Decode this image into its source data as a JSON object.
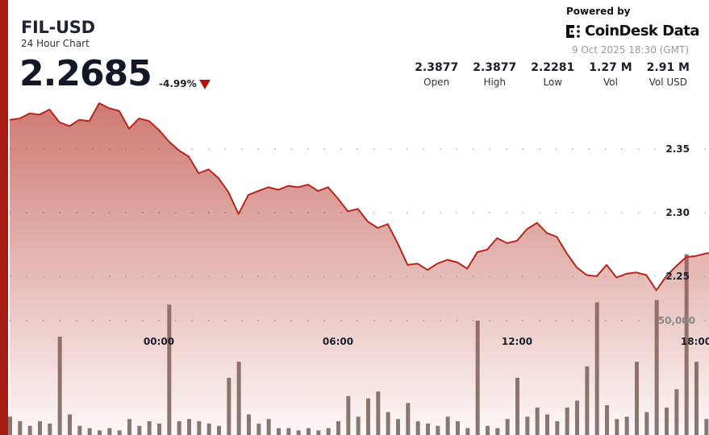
{
  "header": {
    "symbol": "FIL-USD",
    "subtitle": "24 Hour Chart",
    "price": "2.2685",
    "change": "-4.99%",
    "change_direction": "down",
    "powered_by": "Powered by",
    "brand": "CoinDesk Data",
    "timestamp": "9 Oct 2025 18:30 (GMT)"
  },
  "stats": [
    {
      "value": "2.3877",
      "label": "Open"
    },
    {
      "value": "2.3877",
      "label": "High"
    },
    {
      "value": "2.2281",
      "label": "Low"
    },
    {
      "value": "1.27 M",
      "label": "Vol"
    },
    {
      "value": "2.91 M",
      "label": "Vol USD"
    }
  ],
  "colors": {
    "accent": "#a61c12",
    "line": "#b5261e",
    "fill": "#c0544b",
    "volume": "#6e625c",
    "down": "#b3150d"
  },
  "chart_data": {
    "type": "area",
    "grid": true,
    "x_ticks": [
      {
        "label": "00:00",
        "time": "00:00"
      },
      {
        "label": "06:00",
        "time": "06:00"
      },
      {
        "label": "12:00",
        "time": "12:00"
      },
      {
        "label": "18:00",
        "time": "18:00"
      }
    ],
    "price_ticks": [
      "2.35",
      "2.30",
      "2.25"
    ],
    "price_ylim": [
      2.22,
      2.4
    ],
    "volume_ticks": [
      "50,000"
    ],
    "times": [
      "19:00",
      "19:20",
      "19:40",
      "20:00",
      "20:20",
      "20:40",
      "21:00",
      "21:20",
      "21:40",
      "22:00",
      "22:20",
      "22:40",
      "23:00",
      "23:20",
      "23:40",
      "00:00",
      "00:20",
      "00:40",
      "01:00",
      "01:20",
      "01:40",
      "02:00",
      "02:20",
      "02:40",
      "03:00",
      "03:20",
      "03:40",
      "04:00",
      "04:20",
      "04:40",
      "05:00",
      "05:20",
      "05:40",
      "06:00",
      "06:20",
      "06:40",
      "07:00",
      "07:20",
      "07:40",
      "08:00",
      "08:20",
      "08:40",
      "09:00",
      "09:20",
      "09:40",
      "10:00",
      "10:20",
      "10:40",
      "11:00",
      "11:20",
      "11:40",
      "12:00",
      "12:20",
      "12:40",
      "13:00",
      "13:20",
      "13:40",
      "14:00",
      "14:20",
      "14:40",
      "15:00",
      "15:20",
      "15:40",
      "16:00",
      "16:20",
      "16:40",
      "17:00",
      "17:20",
      "17:40",
      "18:00",
      "18:20",
      "18:30"
    ],
    "price": [
      2.373,
      2.374,
      2.378,
      2.377,
      2.381,
      2.371,
      2.368,
      2.373,
      2.372,
      2.386,
      2.382,
      2.38,
      2.366,
      2.374,
      2.372,
      2.365,
      2.356,
      2.349,
      2.344,
      2.331,
      2.334,
      2.327,
      2.316,
      2.299,
      2.314,
      2.317,
      2.32,
      2.318,
      2.321,
      2.32,
      2.322,
      2.317,
      2.32,
      2.311,
      2.301,
      2.303,
      2.293,
      2.288,
      2.291,
      2.276,
      2.259,
      2.26,
      2.255,
      2.26,
      2.263,
      2.261,
      2.256,
      2.269,
      2.271,
      2.28,
      2.276,
      2.278,
      2.287,
      2.292,
      2.284,
      2.281,
      2.268,
      2.257,
      2.251,
      2.25,
      2.259,
      2.249,
      2.252,
      2.253,
      2.251,
      2.239,
      2.25,
      2.258,
      2.265,
      2.266,
      2.268,
      2.2685
    ],
    "volume": [
      8000,
      6000,
      4000,
      6000,
      5000,
      43000,
      9000,
      4000,
      3000,
      2000,
      3000,
      2000,
      7000,
      4000,
      6000,
      5000,
      57000,
      6000,
      7000,
      6000,
      5000,
      4000,
      25000,
      32000,
      9000,
      5000,
      7000,
      3000,
      3000,
      2000,
      3000,
      2000,
      3000,
      6000,
      17000,
      8000,
      16000,
      19000,
      10000,
      7000,
      14000,
      6000,
      5000,
      4000,
      8000,
      6000,
      3000,
      50000,
      4000,
      3000,
      7000,
      25000,
      8000,
      12000,
      9000,
      6000,
      12000,
      15000,
      30000,
      58000,
      13000,
      7000,
      8000,
      32000,
      10000,
      59000,
      12000,
      20000,
      79000,
      32000,
      7000,
      7000
    ]
  }
}
